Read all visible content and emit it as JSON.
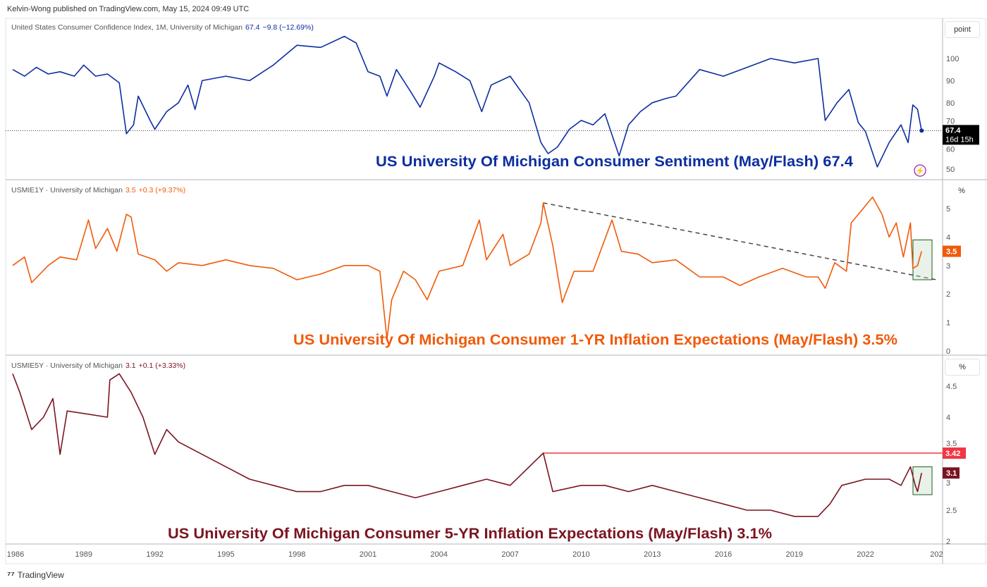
{
  "header": {
    "published": "Kelvin-Wong published on TradingView.com, May 15, 2024 09:49 UTC"
  },
  "footer": {
    "brand": "TradingView"
  },
  "colors": {
    "sentiment": "#0d2ea0",
    "inflation1y": "#f05a0a",
    "inflation5y": "#7a1520",
    "resistance": "#f23645",
    "grid": "#e0e3eb"
  },
  "chart_data": [
    {
      "type": "line",
      "title": "US University Of Michigan Consumer Sentiment (May/Flash) 67.4",
      "legend": {
        "name": "United States Consumer Confidence Index, 1M, University of Michigan",
        "value": "67.4",
        "change": "−9.8 (−12.69%)"
      },
      "unit": "point",
      "ylim": [
        45,
        112
      ],
      "yticks": [
        50,
        60,
        70,
        80,
        90,
        100
      ],
      "last_label": "67.4",
      "countdown": "16d 15h",
      "points": [
        [
          1986,
          95
        ],
        [
          1986.5,
          92
        ],
        [
          1987,
          96
        ],
        [
          1987.5,
          93
        ],
        [
          1988,
          94
        ],
        [
          1988.6,
          92
        ],
        [
          1989,
          97
        ],
        [
          1989.5,
          92
        ],
        [
          1990,
          93
        ],
        [
          1990.5,
          89
        ],
        [
          1990.8,
          66
        ],
        [
          1991.1,
          70
        ],
        [
          1991.3,
          83
        ],
        [
          1991.8,
          72
        ],
        [
          1992,
          68
        ],
        [
          1992.5,
          76
        ],
        [
          1993,
          80
        ],
        [
          1993.4,
          88
        ],
        [
          1993.7,
          77
        ],
        [
          1994,
          90
        ],
        [
          1995,
          92
        ],
        [
          1996,
          90
        ],
        [
          1997,
          97
        ],
        [
          1998,
          106
        ],
        [
          1999,
          105
        ],
        [
          2000,
          110
        ],
        [
          2000.5,
          107
        ],
        [
          2001,
          94
        ],
        [
          2001.5,
          92
        ],
        [
          2001.8,
          83
        ],
        [
          2002.2,
          95
        ],
        [
          2002.8,
          85
        ],
        [
          2003.2,
          78
        ],
        [
          2003.8,
          92
        ],
        [
          2004,
          98
        ],
        [
          2004.7,
          94
        ],
        [
          2005.3,
          90
        ],
        [
          2005.8,
          76
        ],
        [
          2006.2,
          88
        ],
        [
          2007,
          92
        ],
        [
          2007.8,
          80
        ],
        [
          2008.3,
          62
        ],
        [
          2008.6,
          57
        ],
        [
          2009,
          60
        ],
        [
          2009.5,
          68
        ],
        [
          2010,
          72
        ],
        [
          2010.5,
          70
        ],
        [
          2011,
          75
        ],
        [
          2011.6,
          56
        ],
        [
          2012,
          70
        ],
        [
          2012.5,
          76
        ],
        [
          2013,
          80
        ],
        [
          2013.6,
          82
        ],
        [
          2014,
          83
        ],
        [
          2015,
          95
        ],
        [
          2016,
          92
        ],
        [
          2017,
          96
        ],
        [
          2018,
          100
        ],
        [
          2019,
          98
        ],
        [
          2020,
          100
        ],
        [
          2020.3,
          72
        ],
        [
          2020.8,
          80
        ],
        [
          2021.3,
          86
        ],
        [
          2021.7,
          71
        ],
        [
          2022,
          67
        ],
        [
          2022.5,
          51
        ],
        [
          2023,
          62
        ],
        [
          2023.5,
          70
        ],
        [
          2023.8,
          62
        ],
        [
          2024,
          79
        ],
        [
          2024.2,
          77
        ],
        [
          2024.37,
          67.4
        ]
      ]
    },
    {
      "type": "line",
      "title": "US University Of Michigan Consumer 1-YR Inflation Expectations (May/Flash) 3.5%",
      "legend": {
        "name": "USMIE1Y · University of Michigan",
        "value": "3.5",
        "change": "+0.3 (+9.37%)"
      },
      "unit": "%",
      "ylim": [
        0,
        5.6
      ],
      "yticks": [
        0,
        1,
        2,
        3,
        4,
        5
      ],
      "last_label": "3.5",
      "trendline": [
        [
          2008.4,
          5.2
        ],
        [
          2025,
          2.5
        ]
      ],
      "points": [
        [
          1986,
          3.0
        ],
        [
          1986.5,
          3.3
        ],
        [
          1986.8,
          2.4
        ],
        [
          1987.5,
          3.0
        ],
        [
          1988,
          3.3
        ],
        [
          1988.7,
          3.2
        ],
        [
          1989.2,
          4.6
        ],
        [
          1989.5,
          3.6
        ],
        [
          1990,
          4.3
        ],
        [
          1990.4,
          3.5
        ],
        [
          1990.8,
          4.8
        ],
        [
          1991,
          4.7
        ],
        [
          1991.3,
          3.4
        ],
        [
          1992,
          3.2
        ],
        [
          1992.5,
          2.8
        ],
        [
          1993,
          3.1
        ],
        [
          1994,
          3.0
        ],
        [
          1995,
          3.2
        ],
        [
          1996,
          3.0
        ],
        [
          1997,
          2.9
        ],
        [
          1998,
          2.5
        ],
        [
          1999,
          2.7
        ],
        [
          2000,
          3.0
        ],
        [
          2001,
          3.0
        ],
        [
          2001.5,
          2.8
        ],
        [
          2001.8,
          0.4
        ],
        [
          2002,
          1.8
        ],
        [
          2002.5,
          2.8
        ],
        [
          2003,
          2.5
        ],
        [
          2003.5,
          1.8
        ],
        [
          2004,
          2.8
        ],
        [
          2005,
          3.0
        ],
        [
          2005.7,
          4.6
        ],
        [
          2006,
          3.2
        ],
        [
          2006.7,
          4.1
        ],
        [
          2007,
          3.0
        ],
        [
          2007.8,
          3.4
        ],
        [
          2008.3,
          4.5
        ],
        [
          2008.4,
          5.2
        ],
        [
          2008.8,
          3.7
        ],
        [
          2009.2,
          1.7
        ],
        [
          2009.7,
          2.8
        ],
        [
          2010.5,
          2.8
        ],
        [
          2011.3,
          4.6
        ],
        [
          2011.7,
          3.5
        ],
        [
          2012.4,
          3.4
        ],
        [
          2013,
          3.1
        ],
        [
          2014,
          3.2
        ],
        [
          2015,
          2.6
        ],
        [
          2016,
          2.6
        ],
        [
          2016.7,
          2.3
        ],
        [
          2017.5,
          2.6
        ],
        [
          2018.5,
          2.9
        ],
        [
          2019.5,
          2.6
        ],
        [
          2020,
          2.6
        ],
        [
          2020.3,
          2.2
        ],
        [
          2020.7,
          3.1
        ],
        [
          2021.2,
          2.8
        ],
        [
          2021.4,
          4.5
        ],
        [
          2021.8,
          4.9
        ],
        [
          2022.3,
          5.4
        ],
        [
          2022.7,
          4.8
        ],
        [
          2023,
          4.0
        ],
        [
          2023.3,
          4.5
        ],
        [
          2023.6,
          3.3
        ],
        [
          2023.9,
          4.5
        ],
        [
          2024,
          2.9
        ],
        [
          2024.2,
          3.0
        ],
        [
          2024.37,
          3.5
        ]
      ]
    },
    {
      "type": "line",
      "title": "US University Of Michigan Consumer 5-YR Inflation Expectations (May/Flash) 3.1%",
      "legend": {
        "name": "USMIE5Y · University of Michigan",
        "value": "3.1",
        "change": "+0.1 (+3.33%)"
      },
      "unit": "%",
      "ylim": [
        2,
        4.8
      ],
      "yticks": [
        2,
        2.5,
        3,
        3.5,
        4,
        4.5
      ],
      "last_label": "3.1",
      "resistance": {
        "value": 3.42,
        "label": "3.42",
        "from": 2008.4
      },
      "points": [
        [
          1986,
          4.7
        ],
        [
          1986.3,
          4.4
        ],
        [
          1986.8,
          3.8
        ],
        [
          1987.3,
          4.0
        ],
        [
          1987.7,
          4.3
        ],
        [
          1988,
          3.4
        ],
        [
          1988.3,
          4.1
        ],
        [
          1990,
          4.0
        ],
        [
          1990.1,
          4.6
        ],
        [
          1990.5,
          4.7
        ],
        [
          1991,
          4.4
        ],
        [
          1991.5,
          4.0
        ],
        [
          1992,
          3.4
        ],
        [
          1992.5,
          3.8
        ],
        [
          1993,
          3.6
        ],
        [
          1994,
          3.4
        ],
        [
          1995,
          3.2
        ],
        [
          1996,
          3.0
        ],
        [
          1997,
          2.9
        ],
        [
          1998,
          2.8
        ],
        [
          1999,
          2.8
        ],
        [
          2000,
          2.9
        ],
        [
          2001,
          2.9
        ],
        [
          2002,
          2.8
        ],
        [
          2003,
          2.7
        ],
        [
          2004,
          2.8
        ],
        [
          2005,
          2.9
        ],
        [
          2006,
          3.0
        ],
        [
          2007,
          2.9
        ],
        [
          2008.4,
          3.42
        ],
        [
          2008.8,
          2.8
        ],
        [
          2010,
          2.9
        ],
        [
          2011,
          2.9
        ],
        [
          2012,
          2.8
        ],
        [
          2013,
          2.9
        ],
        [
          2014,
          2.8
        ],
        [
          2015,
          2.7
        ],
        [
          2016,
          2.6
        ],
        [
          2017,
          2.5
        ],
        [
          2018,
          2.5
        ],
        [
          2019,
          2.4
        ],
        [
          2020,
          2.4
        ],
        [
          2020.5,
          2.6
        ],
        [
          2021,
          2.9
        ],
        [
          2022,
          3.0
        ],
        [
          2023,
          3.0
        ],
        [
          2023.5,
          2.9
        ],
        [
          2023.9,
          3.2
        ],
        [
          2024.1,
          2.9
        ],
        [
          2024.2,
          2.8
        ],
        [
          2024.37,
          3.1
        ]
      ]
    }
  ],
  "xaxis": {
    "ticks": [
      "1986",
      "1989",
      "1992",
      "1995",
      "1998",
      "2001",
      "2004",
      "2007",
      "2010",
      "2013",
      "2016",
      "2019",
      "2022",
      "202"
    ]
  }
}
